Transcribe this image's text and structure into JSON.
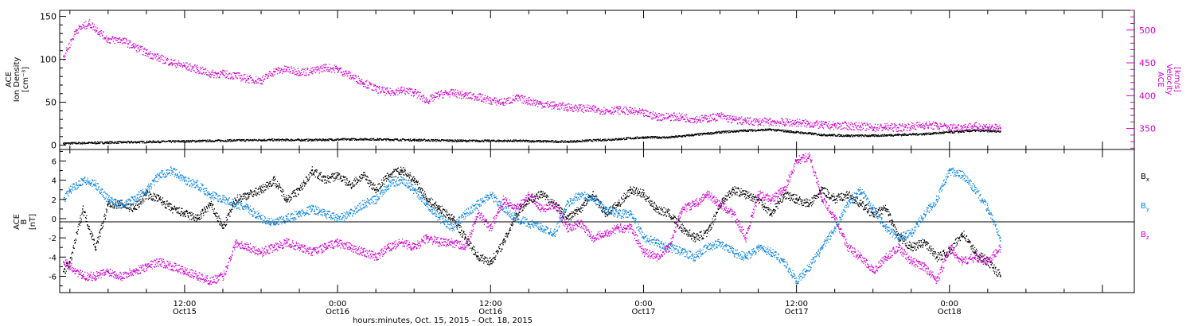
{
  "colors": {
    "black": "#000000",
    "magenta": "#cc00cc",
    "blue": "#0a84dc"
  },
  "x_axis": {
    "title": "hours:minutes, Oct. 15, 2015 – Oct. 18, 2015",
    "range_hours": [
      2.2,
      86.5
    ],
    "ticks": [
      {
        "t": 12,
        "time": "12:00",
        "day": "Oct15"
      },
      {
        "t": 24,
        "time": "0:00",
        "day": "Oct16"
      },
      {
        "t": 36,
        "time": "12:00",
        "day": "Oct16"
      },
      {
        "t": 48,
        "time": "0:00",
        "day": "Oct17"
      },
      {
        "t": 60,
        "time": "12:00",
        "day": "Oct17"
      },
      {
        "t": 72,
        "time": "0:00",
        "day": "Oct18"
      }
    ]
  },
  "panel_top": {
    "left_label": [
      "ACE",
      "Ion Density",
      "[cm⁻³]"
    ],
    "right_label": [
      "ACE",
      "Velocity",
      "[km/s]"
    ],
    "left_ticks": [
      "0",
      "50",
      "100",
      "150"
    ],
    "right_ticks": [
      "350",
      "400",
      "450",
      "500"
    ]
  },
  "panel_bottom": {
    "label": [
      "ACE",
      "B",
      "[nT]"
    ],
    "ticks": [
      "-6",
      "-4",
      "-2",
      "0",
      "2",
      "4",
      "6"
    ],
    "legend": [
      {
        "name": "B",
        "sub": "x"
      },
      {
        "name": "B",
        "sub": "y"
      },
      {
        "name": "B",
        "sub": "z"
      }
    ]
  },
  "chart_data": [
    {
      "type": "scatter",
      "xlabel": "hours:minutes, Oct. 15, 2015 – Oct. 18, 2015",
      "ylabel": "ACE Ion Density [cm⁻³]",
      "y2label": "ACE Velocity [km/s]",
      "xlim": [
        2.2,
        86.5
      ],
      "ylim": [
        -5,
        157
      ],
      "y2lim": [
        318,
        530
      ],
      "series": [
        {
          "name": "Ion Density",
          "axis": "left",
          "color": "#000000",
          "x": [
            2.5,
            6,
            10,
            14,
            18,
            22,
            26,
            30,
            34,
            38,
            42,
            46,
            48,
            50,
            52,
            54,
            56,
            58,
            60,
            62,
            64,
            66,
            68,
            70,
            72,
            74,
            76
          ],
          "y": [
            2,
            3,
            4,
            5,
            6,
            6,
            7,
            6,
            5,
            5,
            4,
            7,
            9,
            9,
            12,
            15,
            17,
            18,
            15,
            12,
            11,
            11,
            12,
            13,
            15,
            17,
            16
          ]
        },
        {
          "name": "Velocity",
          "axis": "right",
          "color": "#cc00cc",
          "x": [
            2.5,
            3.5,
            4.5,
            6,
            7,
            8,
            9,
            10,
            11,
            12,
            13,
            14,
            15,
            16,
            17,
            18,
            19,
            20,
            21,
            22,
            23,
            24,
            25,
            26,
            27,
            28,
            29,
            30,
            31,
            32,
            33,
            34,
            35,
            36,
            37,
            38,
            39,
            40,
            41,
            42,
            43,
            44,
            45,
            46,
            47,
            48,
            49,
            50,
            51,
            52,
            53,
            54,
            55,
            56,
            57,
            58,
            59,
            60,
            61,
            62,
            63,
            64,
            65,
            66,
            67,
            68,
            69,
            70,
            71,
            72,
            73,
            74,
            75,
            76
          ],
          "y": [
            460,
            500,
            510,
            485,
            485,
            475,
            465,
            457,
            450,
            445,
            440,
            433,
            433,
            430,
            425,
            423,
            437,
            440,
            436,
            437,
            443,
            440,
            430,
            420,
            410,
            405,
            408,
            405,
            392,
            402,
            404,
            400,
            398,
            392,
            390,
            396,
            392,
            387,
            385,
            382,
            381,
            379,
            377,
            378,
            376,
            373,
            368,
            368,
            367,
            364,
            365,
            369,
            363,
            361,
            360,
            360,
            359,
            359,
            357,
            355,
            354,
            354,
            353,
            351,
            352,
            351,
            353,
            355,
            354,
            351,
            352,
            353,
            352,
            350
          ]
        }
      ]
    },
    {
      "type": "scatter",
      "xlabel": "hours:minutes, Oct. 15, 2015 – Oct. 18, 2015",
      "ylabel": "ACE B [nT]",
      "xlim": [
        2.2,
        86.5
      ],
      "ylim": [
        -7.7,
        7.2
      ],
      "series": [
        {
          "name": "Bx",
          "color": "#000000",
          "x": [
            2.5,
            3,
            4,
            5,
            6,
            7,
            8,
            9,
            10,
            11,
            12,
            13,
            14,
            15,
            16,
            17,
            18,
            19,
            20,
            21,
            22,
            23,
            24,
            25,
            26,
            27,
            28,
            29,
            30,
            31,
            32,
            33,
            34,
            35,
            36,
            37,
            38,
            39,
            40,
            41,
            42,
            43,
            44,
            45,
            46,
            47,
            48,
            49,
            50,
            51,
            52,
            53,
            54,
            55,
            56,
            57,
            58,
            59,
            60,
            61,
            62,
            63,
            64,
            65,
            66,
            67,
            68,
            69,
            70,
            71,
            72,
            73,
            74,
            75,
            76
          ],
          "y": [
            -5.5,
            -4.5,
            1.0,
            -3.0,
            1.5,
            1.5,
            1.0,
            2.5,
            2.0,
            1.0,
            0.5,
            0.0,
            1.5,
            -1.0,
            2.0,
            2.5,
            3.0,
            4.0,
            2.0,
            3.0,
            5.0,
            4.0,
            4.5,
            3.5,
            4.5,
            3.0,
            4.5,
            5.0,
            4.0,
            2.0,
            1.0,
            0.0,
            -2.0,
            -4.0,
            -4.5,
            -2.5,
            0.5,
            2.0,
            2.5,
            1.5,
            0.0,
            1.0,
            2.5,
            0.5,
            1.5,
            3.0,
            2.5,
            1.0,
            0.5,
            -1.0,
            -2.0,
            -1.5,
            1.5,
            3.0,
            2.5,
            2.0,
            0.5,
            2.5,
            2.0,
            1.5,
            3.0,
            2.0,
            2.5,
            1.5,
            0.5,
            1.0,
            -2.0,
            -3.0,
            -2.5,
            -4.0,
            -3.5,
            -1.5,
            -3.5,
            -4.5,
            -6.0
          ]
        },
        {
          "name": "By",
          "color": "#0a84dc",
          "x": [
            2.5,
            3,
            4,
            5,
            6,
            7,
            8,
            9,
            10,
            11,
            12,
            13,
            14,
            15,
            16,
            17,
            18,
            19,
            20,
            21,
            22,
            23,
            24,
            25,
            26,
            27,
            28,
            29,
            30,
            31,
            32,
            33,
            34,
            35,
            36,
            37,
            38,
            39,
            40,
            41,
            42,
            43,
            44,
            45,
            46,
            47,
            48,
            49,
            50,
            51,
            52,
            53,
            54,
            55,
            56,
            57,
            58,
            59,
            60,
            61,
            62,
            63,
            64,
            65,
            66,
            67,
            68,
            69,
            70,
            71,
            72,
            73,
            74,
            75,
            76
          ],
          "y": [
            2.0,
            3.0,
            4.0,
            3.5,
            2.0,
            1.5,
            2.0,
            3.0,
            4.5,
            5.0,
            4.0,
            3.5,
            2.5,
            2.0,
            1.5,
            1.0,
            0.0,
            -0.5,
            0.0,
            0.5,
            1.0,
            0.5,
            0.0,
            0.5,
            1.5,
            2.0,
            3.5,
            4.0,
            3.0,
            1.5,
            0.0,
            -1.0,
            0.5,
            1.5,
            2.5,
            1.0,
            0.0,
            -0.5,
            -1.0,
            -1.5,
            1.5,
            2.5,
            2.0,
            1.0,
            0.5,
            0.5,
            -2.0,
            -2.5,
            -3.0,
            -3.5,
            -4.0,
            -3.0,
            -2.5,
            -3.5,
            -4.0,
            -3.0,
            -3.5,
            -4.5,
            -6.5,
            -5.0,
            -3.0,
            -1.0,
            1.5,
            3.0,
            1.0,
            -1.0,
            -2.0,
            -1.5,
            0.5,
            2.0,
            5.0,
            4.5,
            3.0,
            1.0,
            -2.0
          ]
        },
        {
          "name": "Bz",
          "color": "#cc00cc",
          "x": [
            2.5,
            3,
            4,
            5,
            6,
            7,
            8,
            9,
            10,
            11,
            12,
            13,
            14,
            15,
            16,
            17,
            18,
            19,
            20,
            21,
            22,
            23,
            24,
            25,
            26,
            27,
            28,
            29,
            30,
            31,
            32,
            33,
            34,
            35,
            36,
            37,
            38,
            39,
            40,
            41,
            42,
            43,
            44,
            45,
            46,
            47,
            48,
            49,
            50,
            51,
            52,
            53,
            54,
            55,
            56,
            57,
            58,
            59,
            60,
            61,
            62,
            63,
            64,
            65,
            66,
            67,
            68,
            69,
            70,
            71,
            72,
            73,
            74,
            75,
            76
          ],
          "y": [
            -4.5,
            -5.0,
            -6.0,
            -6.0,
            -5.5,
            -6.0,
            -5.5,
            -5.0,
            -4.5,
            -5.0,
            -5.5,
            -6.0,
            -6.5,
            -6.0,
            -2.5,
            -3.0,
            -3.5,
            -3.0,
            -2.5,
            -3.0,
            -3.5,
            -3.0,
            -2.5,
            -3.0,
            -3.5,
            -4.0,
            -3.0,
            -2.5,
            -3.0,
            -2.0,
            -2.5,
            -2.5,
            -3.0,
            0.5,
            -1.0,
            2.0,
            1.0,
            2.5,
            1.0,
            1.5,
            -1.0,
            -0.5,
            -2.0,
            -1.5,
            -1.0,
            -1.0,
            -3.5,
            -4.0,
            -3.0,
            1.0,
            1.5,
            2.5,
            1.5,
            0.5,
            -2.0,
            2.5,
            2.0,
            3.0,
            6.0,
            6.5,
            2.0,
            0.0,
            -3.0,
            -4.0,
            -5.5,
            -4.0,
            -3.0,
            -4.5,
            -5.0,
            -6.5,
            -3.0,
            -4.5,
            -4.0,
            -4.5,
            -3.0
          ]
        }
      ]
    }
  ]
}
